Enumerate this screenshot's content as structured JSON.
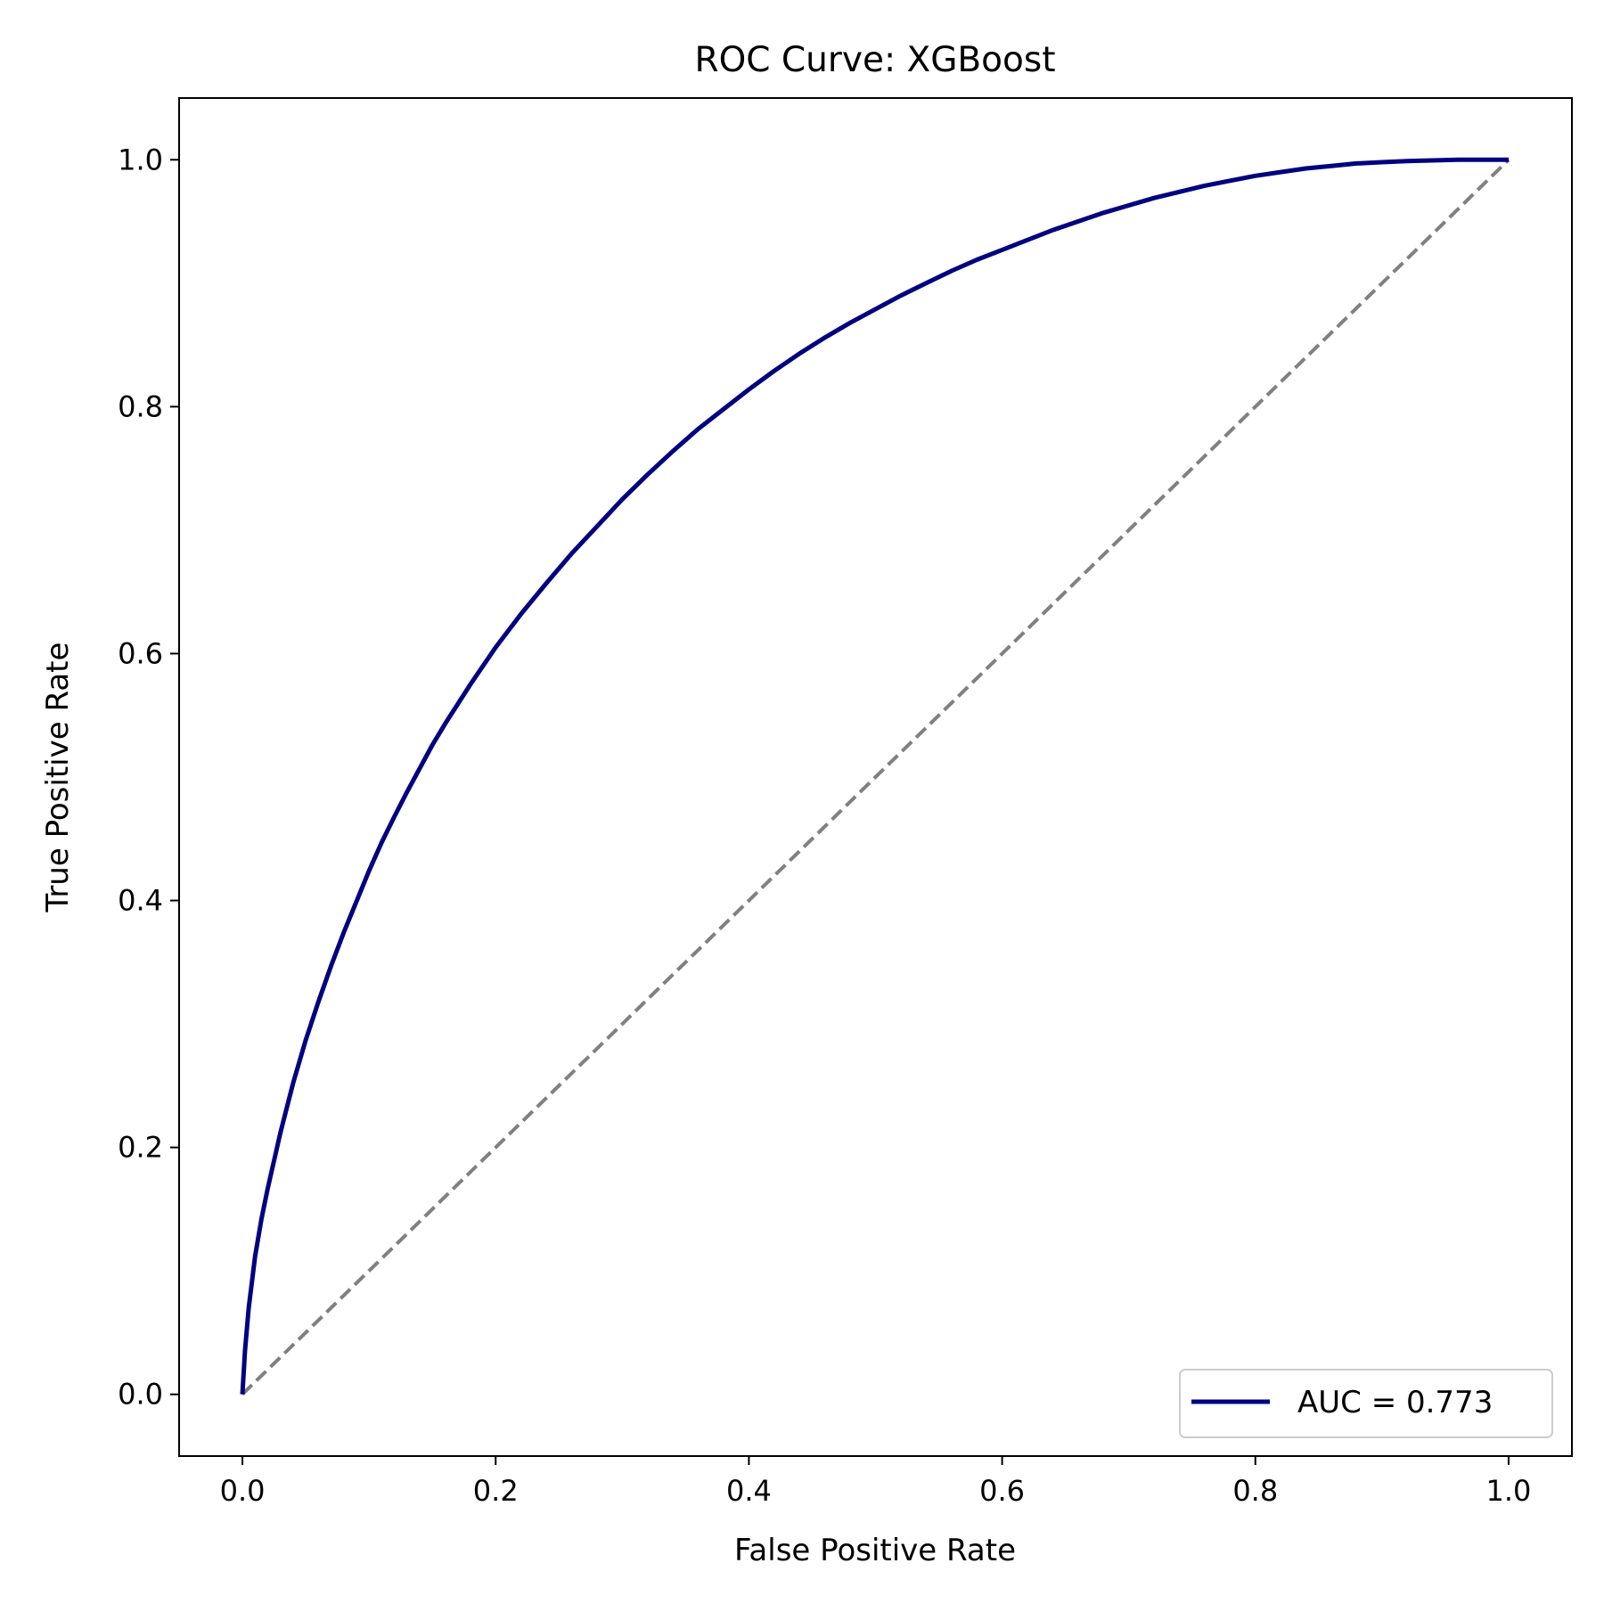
{
  "chart_data": {
    "type": "line",
    "title": "ROC Curve: XGBoost",
    "xlabel": "False Positive Rate",
    "ylabel": "True Positive Rate",
    "xlim": [
      -0.05,
      1.05
    ],
    "ylim": [
      -0.05,
      1.05
    ],
    "xticks": [
      {
        "value": 0.0,
        "label": "0.0"
      },
      {
        "value": 0.2,
        "label": "0.2"
      },
      {
        "value": 0.4,
        "label": "0.4"
      },
      {
        "value": 0.6,
        "label": "0.6"
      },
      {
        "value": 0.8,
        "label": "0.8"
      },
      {
        "value": 1.0,
        "label": "1.0"
      }
    ],
    "yticks": [
      {
        "value": 0.0,
        "label": "0.0"
      },
      {
        "value": 0.2,
        "label": "0.2"
      },
      {
        "value": 0.4,
        "label": "0.4"
      },
      {
        "value": 0.6,
        "label": "0.6"
      },
      {
        "value": 0.8,
        "label": "0.8"
      },
      {
        "value": 1.0,
        "label": "1.0"
      }
    ],
    "grid": false,
    "legend_position": "lower-right",
    "series": [
      {
        "name": "AUC = 0.773",
        "color": "#000080",
        "style": "solid",
        "x": [
          0.0,
          0.002,
          0.005,
          0.01,
          0.015,
          0.02,
          0.03,
          0.04,
          0.05,
          0.06,
          0.07,
          0.08,
          0.09,
          0.1,
          0.11,
          0.12,
          0.13,
          0.14,
          0.15,
          0.16,
          0.18,
          0.2,
          0.22,
          0.24,
          0.26,
          0.28,
          0.3,
          0.32,
          0.34,
          0.36,
          0.38,
          0.4,
          0.42,
          0.44,
          0.46,
          0.48,
          0.5,
          0.52,
          0.54,
          0.56,
          0.58,
          0.6,
          0.62,
          0.64,
          0.66,
          0.68,
          0.7,
          0.72,
          0.74,
          0.76,
          0.78,
          0.8,
          0.82,
          0.84,
          0.86,
          0.88,
          0.9,
          0.92,
          0.94,
          0.96,
          0.98,
          1.0
        ],
        "y": [
          0.0,
          0.035,
          0.07,
          0.112,
          0.142,
          0.167,
          0.212,
          0.252,
          0.287,
          0.318,
          0.347,
          0.374,
          0.399,
          0.424,
          0.447,
          0.468,
          0.488,
          0.507,
          0.526,
          0.543,
          0.575,
          0.605,
          0.632,
          0.657,
          0.681,
          0.703,
          0.725,
          0.745,
          0.764,
          0.782,
          0.798,
          0.814,
          0.829,
          0.843,
          0.856,
          0.868,
          0.879,
          0.89,
          0.9,
          0.91,
          0.919,
          0.927,
          0.935,
          0.943,
          0.95,
          0.957,
          0.963,
          0.969,
          0.974,
          0.979,
          0.983,
          0.987,
          0.99,
          0.993,
          0.995,
          0.997,
          0.998,
          0.999,
          0.9995,
          1.0,
          1.0,
          1.0
        ]
      },
      {
        "name": "",
        "color": "#808080",
        "style": "dashed",
        "x": [
          0.0,
          1.0
        ],
        "y": [
          0.0,
          1.0
        ]
      }
    ]
  }
}
